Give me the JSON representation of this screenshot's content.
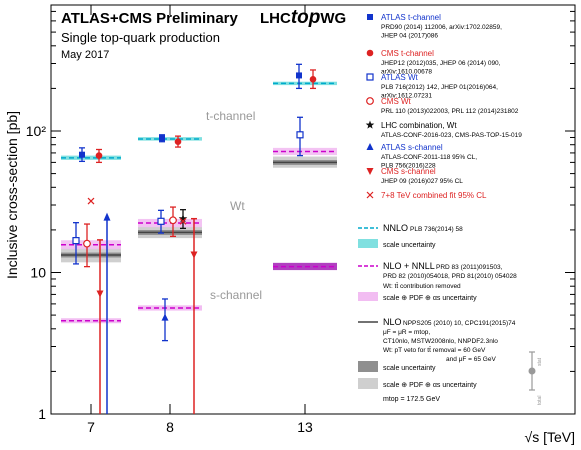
{
  "header": {
    "title": "ATLAS+CMS Preliminary",
    "wg_prefix": "LHC",
    "wg_italic": "top",
    "wg_suffix": "WG",
    "subtitle": "Single top-quark production",
    "date": "May 2017"
  },
  "chart_data": {
    "type": "scatter",
    "title": "ATLAS+CMS Preliminary LHCtopWG",
    "xlabel": "√s [TeV]",
    "ylabel": "Inclusive cross-section [pb]",
    "yscale": "log",
    "ylim": [
      1,
      700
    ],
    "categories": [
      "7",
      "8",
      "13"
    ],
    "yticks": [
      "1",
      "10",
      "10²"
    ],
    "channel_labels": [
      "t-channel",
      "Wt",
      "s-channel"
    ],
    "series": [
      {
        "name": "ATLAS t-channel",
        "color": "#1133cc",
        "points": [
          {
            "x": "7",
            "y": 68,
            "err": [
              61,
              76
            ]
          },
          {
            "x": "8",
            "y": 89,
            "err": [
              84,
              94
            ]
          },
          {
            "x": "13",
            "y": 247,
            "err": [
              200,
              296
            ]
          }
        ]
      },
      {
        "name": "CMS t-channel",
        "color": "#dd2222",
        "points": [
          {
            "x": "7",
            "y": 67,
            "err": [
              60,
              74
            ]
          },
          {
            "x": "8",
            "y": 84,
            "err": [
              77,
              92
            ]
          },
          {
            "x": "13",
            "y": 232,
            "err": [
              200,
              270
            ]
          }
        ]
      },
      {
        "name": "ATLAS Wt",
        "color": "#1133cc",
        "points": [
          {
            "x": "7",
            "y": 16.8,
            "err": [
              11.5,
              22.5
            ]
          },
          {
            "x": "8",
            "y": 23,
            "err": [
              19,
              27.5
            ]
          },
          {
            "x": "13",
            "y": 94,
            "err": [
              67,
              125
            ]
          }
        ]
      },
      {
        "name": "CMS Wt",
        "color": "#dd2222",
        "points": [
          {
            "x": "7",
            "y": 16,
            "err": [
              11,
              22
            ]
          },
          {
            "x": "8",
            "y": 23.4,
            "err": [
              18,
              29
            ]
          }
        ]
      },
      {
        "name": "LHC combination, Wt",
        "color": "#111111",
        "points": [
          {
            "x": "8",
            "y": 24,
            "err": [
              20.5,
              27.8
            ]
          }
        ]
      },
      {
        "name": "ATLAS s-channel",
        "color": "#1133cc",
        "points": [
          {
            "x": "7",
            "y": 26.5,
            "limit": "upper"
          },
          {
            "x": "8",
            "y": 4.8,
            "err": [
              3.3,
              6.5
            ]
          }
        ]
      },
      {
        "name": "CMS s-channel",
        "color": "#dd2222",
        "points": [
          {
            "x": "7",
            "y": 7.1,
            "err": [
              1,
              17
            ],
            "limit": "ext"
          },
          {
            "x": "8",
            "y": 13.4,
            "err": [
              1,
              24
            ],
            "limit": "ext"
          }
        ]
      },
      {
        "name": "7+8 TeV combined fit 95% CL",
        "color": "#dd2222",
        "points": [
          {
            "x": "7",
            "y": 32,
            "limit": "upper"
          },
          {
            "x": "8",
            "y": 23,
            "limit": "upper"
          }
        ]
      }
    ],
    "theory": {
      "nnlo": [
        {
          "x": "7",
          "y": 64.6,
          "band": [
            62.5,
            67
          ]
        },
        {
          "x": "8",
          "y": 87.8,
          "band": [
            85.5,
            90.5
          ]
        },
        {
          "x": "13",
          "y": 217,
          "band": [
            211,
            223
          ]
        }
      ],
      "nlo_nnll_wt": [
        {
          "x": "7",
          "y": 15.7,
          "band": [
            14.6,
            16.9
          ]
        },
        {
          "x": "8",
          "y": 22.4,
          "band": [
            20.9,
            23.9
          ]
        },
        {
          "x": "13",
          "y": 71.7,
          "band": [
            67.5,
            76
          ]
        }
      ],
      "nlo_nnll_s": [
        {
          "x": "7",
          "y": 4.56,
          "band": [
            4.38,
            4.75
          ]
        },
        {
          "x": "8",
          "y": 5.61,
          "band": [
            5.38,
            5.86
          ]
        },
        {
          "x": "13",
          "y": 11.0,
          "band": [
            10.4,
            11.7
          ]
        }
      ],
      "nlo": [
        {
          "x": "7",
          "y": 13.3,
          "band": [
            11.8,
            15
          ]
        },
        {
          "x": "8",
          "y": 19.2,
          "band": [
            17.5,
            21
          ]
        },
        {
          "x": "13",
          "y": 60,
          "band": [
            55,
            66
          ]
        }
      ]
    }
  },
  "legend": {
    "entries": [
      {
        "label": "ATLAS t-channel",
        "lines": [
          "PRD90 (2014) 112006, arXiv:1702.02859,",
          "JHEP 04 (2017)086"
        ]
      },
      {
        "label": "CMS t-channel",
        "lines": [
          "JHEP12 (2012)035, JHEP 06 (2014) 090,",
          "arXiv:1610.00678"
        ]
      },
      {
        "label": "ATLAS Wt",
        "lines": [
          "PLB 716(2012) 142, JHEP 01(2016)064,",
          "arXiv:1612.07231"
        ]
      },
      {
        "label": "CMS Wt",
        "lines": [
          "PRL 110 (2013)022003, PRL 112 (2014)231802"
        ]
      },
      {
        "label": "LHC combination, Wt",
        "lines": [
          "ATLAS-CONF-2016-023, CMS-PAS-TOP-15-019"
        ]
      },
      {
        "label": "ATLAS s-channel",
        "lines": [
          "ATLAS-CONF-2011-118 95% CL,",
          "PLB 756(2016)228"
        ]
      },
      {
        "label": "CMS s-channel",
        "lines": [
          "JHEP 09 (2016)027 95% CL"
        ]
      },
      {
        "label": "7+8 TeV combined fit 95% CL",
        "lines": []
      }
    ],
    "theory": {
      "nnlo_label": "NNLO",
      "nnlo_ref": "PLB 736(2014) 58",
      "scale_unc": "scale uncertainty",
      "nlo_nnll_label": "NLO + NNLL",
      "nlo_nnll_ref1": "PRD 83 (2011)091503,",
      "nlo_nnll_ref2": "PRD 82 (2010)054018, PRD 81(2010) 054028",
      "wt_removed": "Wt: tt̄ contribution removed",
      "scale_pdf": "scale ⊕ PDF ⊕ αs uncertainty",
      "nlo_label": "NLO",
      "nlo_ref": "NPPS205 (2010) 10, CPC191(2015)74",
      "nlo_l1": "μF = μR = mtop,",
      "nlo_l2": "CT10nlo, MSTW2008nlo, NNPDF2.3nlo",
      "nlo_l3": "Wt: pT veto for tt̄ removal = 60 GeV",
      "nlo_l4": "and μF = 65 GeV",
      "scale_unc2": "scale uncertainty",
      "scale_pdf2": "scale ⊕ PDF ⊕ αs uncertainty",
      "mtop": "mtop = 172.5 GeV",
      "stat_label": "stat",
      "total_label": "total"
    }
  }
}
